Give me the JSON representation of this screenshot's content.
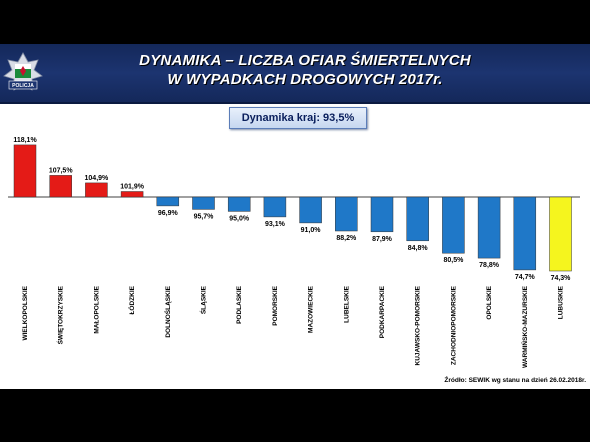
{
  "header": {
    "title_line1": "DYNAMIKA – LICZBA OFIAR ŚMIERTELNYCH",
    "title_line2": "W WYPADKACH DROGOWYCH 2017r.",
    "logo_text": "POLICJA"
  },
  "summary": {
    "label": "Dynamika kraj: 93,5%"
  },
  "source": "Źródło: SEWIK wg stanu na dzień 26.02.2018r.",
  "colors": {
    "above": "#e41b17",
    "below": "#1f78c8",
    "highlight": "#f5f51e",
    "header": "#1c3470"
  },
  "chart_data": {
    "type": "bar",
    "baseline": 100,
    "categories": [
      "WIELKOPOLSKIE",
      "ŚWIĘTOKRZYSKIE",
      "MAŁOPOLSKIE",
      "ŁÓDZKIE",
      "DOLNOŚLĄSKIE",
      "ŚLĄSKIE",
      "PODLASKIE",
      "POMORSKIE",
      "MAZOWIECKIE",
      "LUBELSKIE",
      "PODKARPACKIE",
      "KUJAWSKO-POMORSKIE",
      "ZACHODNIOPOMORSKIE",
      "OPOLSKIE",
      "WARMIŃSKO-MAZURSKIE",
      "LUBUSKIE"
    ],
    "values": [
      118.1,
      107.5,
      104.9,
      101.9,
      96.9,
      95.7,
      95.0,
      93.1,
      91.0,
      88.2,
      87.9,
      84.8,
      80.5,
      78.8,
      74.7,
      74.3
    ],
    "labels": [
      "118,1%",
      "107,5%",
      "104,9%",
      "101,9%",
      "96,9%",
      "95,7%",
      "95,0%",
      "93,1%",
      "91,0%",
      "88,2%",
      "87,9%",
      "84,8%",
      "80,5%",
      "78,8%",
      "74,7%",
      "74,3%"
    ],
    "highlight_index": 15
  }
}
